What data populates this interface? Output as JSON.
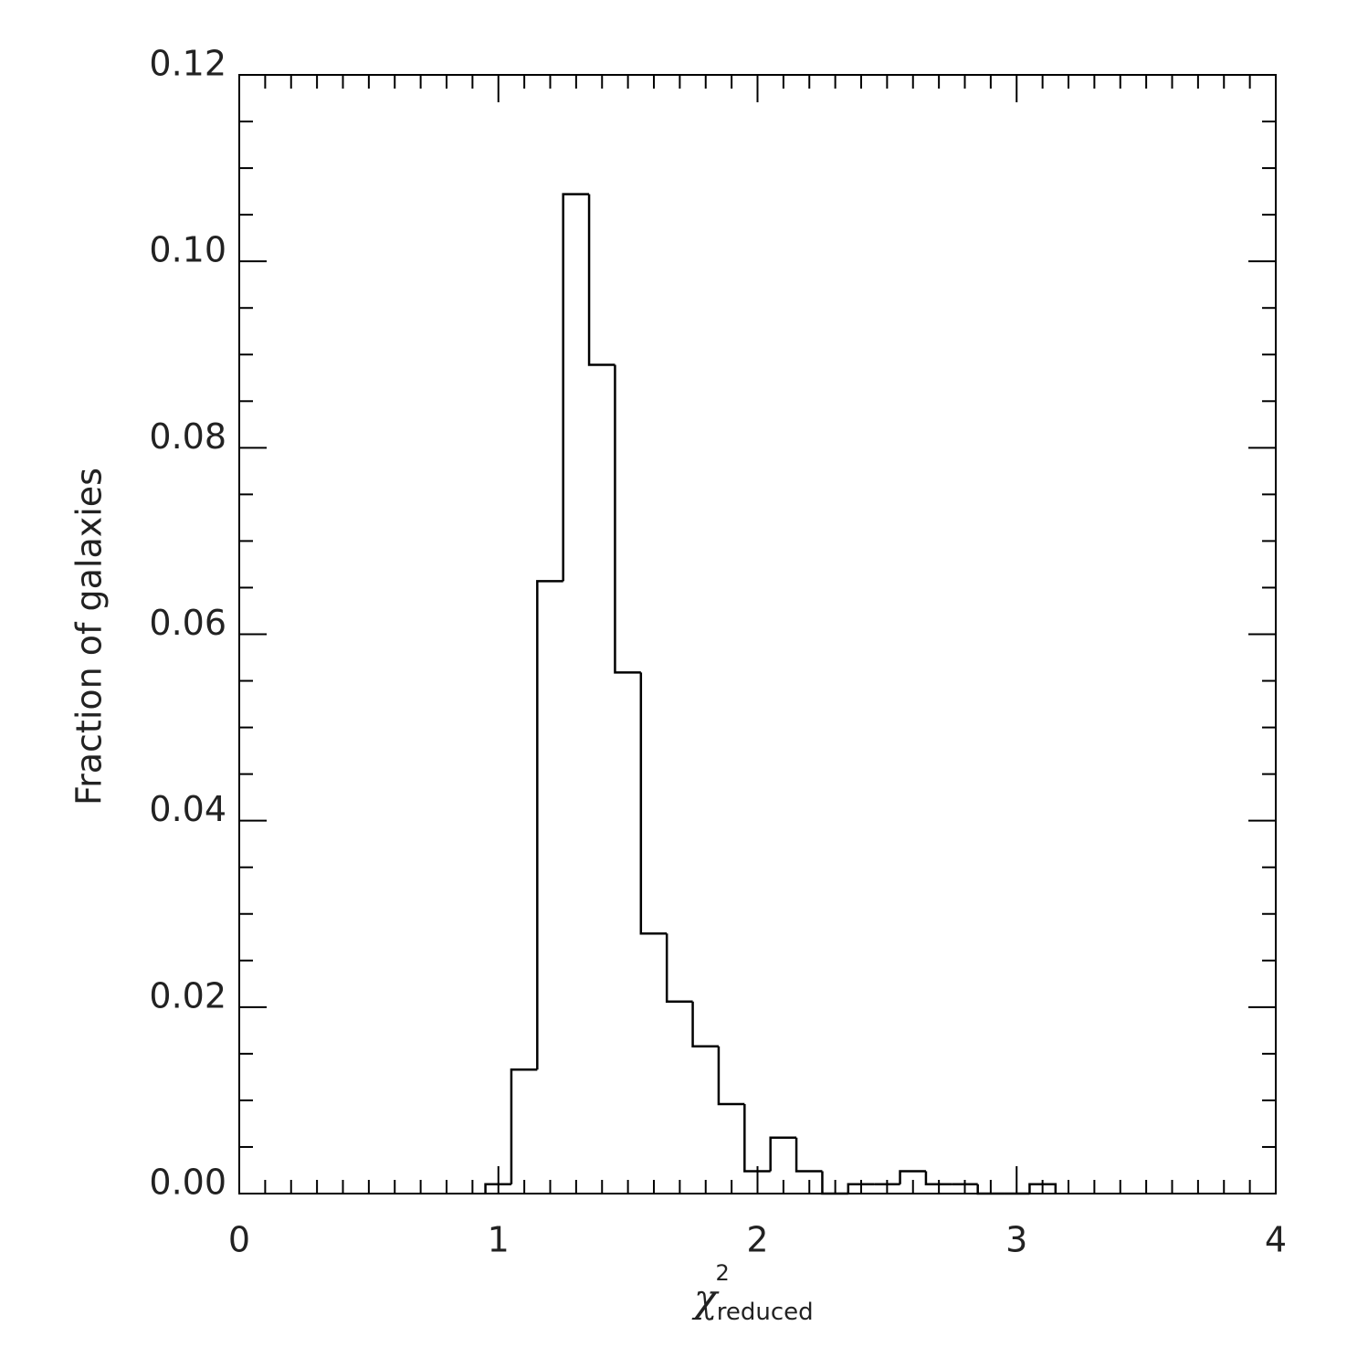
{
  "chart_data": {
    "type": "histogram",
    "x_label": {
      "symbol": "χ",
      "superscript": "2",
      "subscript": "reduced"
    },
    "y_label": "Fraction of galaxies",
    "bins": [
      0.95,
      1.05,
      1.15,
      1.25,
      1.35,
      1.45,
      1.55,
      1.65,
      1.75,
      1.85,
      1.95,
      2.05,
      2.15,
      2.25,
      2.35,
      2.45,
      2.55,
      2.65,
      2.75,
      2.85,
      2.95,
      3.05,
      3.15
    ],
    "counts": [
      0.001,
      0.0133,
      0.0657,
      0.1072,
      0.0889,
      0.0559,
      0.0279,
      0.0206,
      0.0158,
      0.0096,
      0.0024,
      0.006,
      0.0024,
      0,
      0.001,
      0.001,
      0.0024,
      0.001,
      0.001,
      0,
      0,
      0.001
    ],
    "color": "#000000",
    "xlim": [
      0,
      4
    ],
    "xticks": [
      0,
      1,
      2,
      3,
      4
    ],
    "ylim": [
      0,
      0.12
    ],
    "yticks": [
      {
        "value": 0,
        "label": "0.00"
      },
      {
        "value": 0.02,
        "label": "0.02"
      },
      {
        "value": 0.04,
        "label": "0.04"
      },
      {
        "value": 0.06,
        "label": "0.06"
      },
      {
        "value": 0.08,
        "label": "0.08"
      },
      {
        "value": 0.1,
        "label": "0.10"
      },
      {
        "value": 0.12,
        "label": "0.12"
      }
    ]
  }
}
